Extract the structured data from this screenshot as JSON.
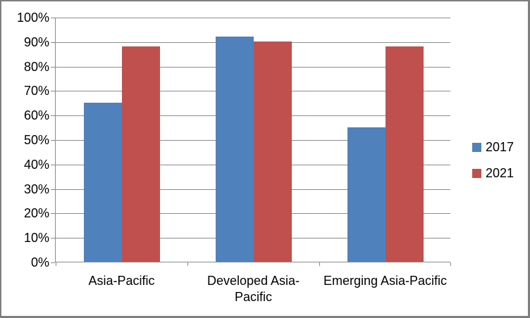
{
  "chart_data": {
    "type": "bar",
    "title": "",
    "xlabel": "",
    "ylabel": "",
    "categories": [
      "Asia-Pacific",
      "Developed Asia-Pacific",
      "Emerging Asia-Pacific"
    ],
    "x_display_labels": [
      "Asia-Pacific",
      "Developed Asia-\nPacific",
      "Emerging Asia-Pacific"
    ],
    "series": [
      {
        "name": "2017",
        "color": "#4F81BD",
        "values": [
          65,
          92,
          55
        ]
      },
      {
        "name": "2021",
        "color": "#C0504D",
        "values": [
          88,
          90,
          88
        ]
      }
    ],
    "value_unit": "%",
    "ylim": [
      0,
      100
    ],
    "y_ticks": [
      0,
      10,
      20,
      30,
      40,
      50,
      60,
      70,
      80,
      90,
      100
    ],
    "y_tick_labels": [
      "0%",
      "10%",
      "20%",
      "30%",
      "40%",
      "50%",
      "60%",
      "70%",
      "80%",
      "90%",
      "100%"
    ],
    "grid": true,
    "legend_position": "right"
  },
  "colors": {
    "background": "#FFFFFF",
    "frame_border": "#7F7F7F",
    "axis": "#8A8A8A",
    "gridline": "#8C8C8C",
    "text": "#000000"
  }
}
